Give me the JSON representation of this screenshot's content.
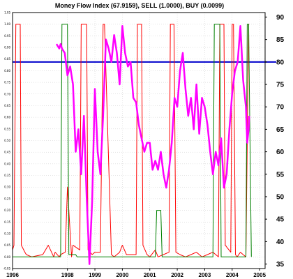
{
  "chart_data": {
    "type": "line",
    "title": "Money Flow Index (67.9159), SELL (1.0000), BUY (0.0099)",
    "xlabel": "",
    "ylabel": "",
    "x_ticks": [
      "1996",
      "1998",
      "1999",
      "2000",
      "2001",
      "2002",
      "2003",
      "2004",
      "2005"
    ],
    "x_range": [
      1996.0,
      2005.2
    ],
    "y_left_ticks": [
      "1.05",
      "1.00",
      "0.95",
      "0.90",
      "0.85",
      "0.80",
      "0.75",
      "0.70",
      "0.65",
      "0.60",
      "0.55",
      "0.50",
      "0.45",
      "0.40",
      "0.35",
      "0.30",
      "0.25",
      "0.20",
      "0.15",
      "0.10",
      "0.05",
      "0.00",
      "-0.05"
    ],
    "y_left_range": [
      -0.05,
      1.05
    ],
    "y_right_ticks": [
      "90",
      "85",
      "80",
      "75",
      "70",
      "65",
      "60",
      "55",
      "50",
      "45",
      "40",
      "35"
    ],
    "y_right_range": [
      34,
      91
    ],
    "reference_line": {
      "value": 80,
      "axis": "right",
      "color": "#0000cc"
    },
    "grid": true,
    "colors": {
      "sell": "#ff0000",
      "buy": "#008000",
      "mfi": "#ff00ff",
      "reference": "#0000cc"
    },
    "series": [
      {
        "axis": "left",
        "x": [
          1996.0,
          1996.05,
          1996.12,
          1996.28,
          1996.32,
          1996.45,
          1996.5,
          1996.7,
          1997.1,
          1997.3,
          1997.5,
          1997.55,
          1997.7,
          1997.75,
          1997.92,
          1998.0,
          1998.15,
          1998.2,
          1998.45,
          1998.5,
          1998.7,
          1998.75,
          1998.9,
          1999.0,
          1999.2,
          1999.3,
          1999.35,
          1999.6,
          1999.7,
          1999.9,
          2000.0,
          2000.15,
          2000.5,
          2000.55,
          2000.7,
          2000.75,
          2000.9,
          2001.0,
          2001.2,
          2001.3,
          2001.5,
          2001.7,
          2001.75,
          2001.88,
          2001.95,
          2002.1,
          2002.3,
          2002.5,
          2002.7,
          2002.9,
          2003.1,
          2003.3,
          2003.5,
          2003.55,
          2003.7,
          2003.75,
          2003.95,
          2004.0,
          2004.05,
          2004.12,
          2004.18,
          2004.3,
          2004.4,
          2004.5,
          2004.6,
          2004.62
        ],
        "values": [
          0.03,
          0.05,
          1.0,
          1.0,
          0.05,
          0.02,
          0.01,
          0.0,
          0.01,
          0.05,
          0.0,
          0.02,
          0.0,
          0.01,
          0.02,
          0.3,
          0.0,
          0.05,
          0.03,
          1.0,
          1.0,
          0.03,
          0.01,
          0.02,
          0.02,
          1.0,
          1.0,
          0.01,
          0.0,
          0.02,
          0.05,
          0.01,
          0.01,
          1.0,
          1.0,
          0.05,
          0.01,
          0.0,
          0.03,
          0.0,
          0.01,
          0.02,
          1.0,
          1.0,
          0.02,
          0.01,
          0.0,
          0.01,
          0.02,
          0.0,
          0.01,
          0.02,
          0.0,
          1.0,
          1.0,
          0.05,
          0.02,
          1.0,
          1.0,
          0.01,
          0.0,
          0.02,
          0.01,
          0.0,
          1.0,
          1.0
        ]
      },
      {
        "axis": "left",
        "x": [
          1996.0,
          1997.75,
          1997.8,
          1998.0,
          1998.05,
          1998.3,
          1998.35,
          1999.1,
          2000.5,
          2001.2,
          2001.25,
          2001.4,
          2001.45,
          2003.3,
          2003.35,
          2003.55,
          2003.6,
          2004.5,
          2004.55,
          2004.6,
          2004.7
        ],
        "values": [
          0.0,
          0.0,
          1.0,
          1.0,
          0.01,
          0.01,
          0.0,
          0.0,
          0.0,
          0.0,
          0.2,
          0.2,
          0.0,
          0.0,
          1.0,
          1.0,
          0.0,
          0.0,
          1.0,
          1.0,
          0.0
        ]
      },
      {
        "axis": "right",
        "x": [
          1997.6,
          1997.7,
          1997.75,
          1997.8,
          1997.9,
          1998.0,
          1998.1,
          1998.2,
          1998.3,
          1998.4,
          1998.5,
          1998.6,
          1998.7,
          1998.8,
          1998.9,
          1999.0,
          1999.1,
          1999.2,
          1999.3,
          1999.4,
          1999.5,
          1999.6,
          1999.7,
          1999.8,
          1999.9,
          2000.0,
          2000.1,
          2000.2,
          2000.3,
          2000.4,
          2000.5,
          2000.6,
          2000.7,
          2000.8,
          2000.9,
          2001.0,
          2001.1,
          2001.2,
          2001.3,
          2001.4,
          2001.5,
          2001.6,
          2001.7,
          2001.8,
          2001.9,
          2002.0,
          2002.1,
          2002.2,
          2002.3,
          2002.4,
          2002.5,
          2002.6,
          2002.7,
          2002.8,
          2002.9,
          2003.0,
          2003.1,
          2003.2,
          2003.3,
          2003.4,
          2003.5,
          2003.6,
          2003.7,
          2003.8,
          2003.9,
          2004.0,
          2004.1,
          2004.2,
          2004.3,
          2004.4,
          2004.5,
          2004.55,
          2004.6,
          2004.62
        ],
        "values": [
          84,
          83,
          84,
          83,
          82,
          77,
          79,
          75,
          60,
          65,
          55,
          68,
          50,
          35,
          49,
          74,
          60,
          55,
          68,
          85,
          83,
          80,
          86,
          82,
          75,
          88,
          82,
          79,
          80,
          72,
          71,
          66,
          63,
          60,
          62,
          62,
          56,
          58,
          56,
          60,
          55,
          52,
          56,
          62,
          72,
          70,
          78,
          82,
          74,
          68,
          72,
          65,
          75,
          64,
          72,
          70,
          66,
          60,
          55,
          60,
          57,
          63,
          52,
          55,
          65,
          73,
          78,
          80,
          88,
          76,
          70,
          62,
          65,
          68
        ]
      }
    ]
  }
}
